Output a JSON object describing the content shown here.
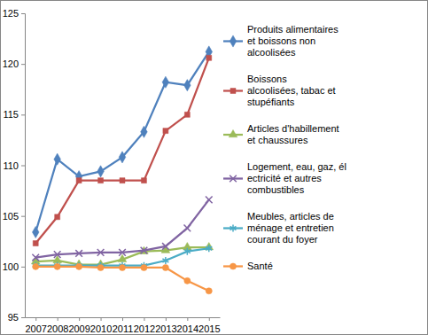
{
  "chart_data": {
    "type": "line",
    "categories": [
      "2007",
      "2008",
      "2009",
      "2010",
      "2011",
      "2012",
      "2013",
      "2014",
      "2015"
    ],
    "ylim": [
      95,
      125
    ],
    "yticks": [
      95,
      100,
      105,
      110,
      115,
      120,
      125
    ],
    "grid": false,
    "legend": "right",
    "series": [
      {
        "name": "Produits alimentaires\net boissons non\nalcoolisées",
        "color": "#4F81BD",
        "marker": "diamond",
        "values": [
          103.4,
          110.6,
          108.9,
          109.4,
          110.8,
          113.3,
          118.2,
          117.9,
          121.2
        ]
      },
      {
        "name": "Boissons\nalcoolisées, tabac et\nstupéfiants",
        "color": "#C0504D",
        "marker": "square",
        "values": [
          102.3,
          104.9,
          108.5,
          108.5,
          108.5,
          108.5,
          113.4,
          115.0,
          120.6
        ]
      },
      {
        "name": "Articles d'habillement\net chaussures",
        "color": "#9BBB59",
        "marker": "triangle",
        "values": [
          100.5,
          100.6,
          100.2,
          100.2,
          100.7,
          101.5,
          101.6,
          101.9,
          101.9
        ]
      },
      {
        "name": "Logement, eau, gaz, él\nectricité et autres\ncombustibles",
        "color": "#8064A2",
        "marker": "x",
        "values": [
          100.9,
          101.2,
          101.3,
          101.4,
          101.4,
          101.6,
          102.0,
          103.8,
          106.6
        ]
      },
      {
        "name": "Meubles, articles de\nménage et entretien\ncourant du foyer",
        "color": "#4BACC6",
        "marker": "star",
        "values": [
          100.1,
          100.1,
          100.1,
          100.1,
          100.1,
          100.1,
          100.6,
          101.5,
          101.8
        ]
      },
      {
        "name": "Santé",
        "color": "#F79646",
        "marker": "circle",
        "values": [
          100.0,
          100.0,
          100.0,
          99.9,
          99.9,
          99.9,
          99.9,
          98.6,
          97.6
        ]
      }
    ]
  }
}
